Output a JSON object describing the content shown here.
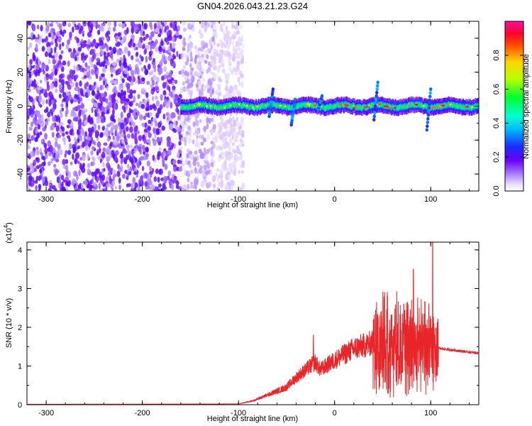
{
  "title": "GN04.2026.043.21.23.G24",
  "chart_data": [
    {
      "type": "heatmap",
      "xlabel": "Height of straight line (km)",
      "ylabel": "Frequency (Hz)",
      "xlim": [
        -320,
        150
      ],
      "ylim": [
        -50,
        50
      ],
      "x_ticks": [
        -300,
        -200,
        -100,
        0,
        100
      ],
      "y_ticks": [
        -40,
        -20,
        0,
        20,
        40
      ],
      "colorbar": {
        "label": "Normalized spectral amplitude",
        "range": [
          0.0,
          1.0
        ],
        "ticks": [
          0.0,
          0.2,
          0.4,
          0.6,
          0.8
        ]
      },
      "features": {
        "noise_region_x": [
          -320,
          -125
        ],
        "signal_band_start_x": -160,
        "signal_band_center_hz": 0,
        "signal_band_width_hz": 6,
        "spikes": [
          {
            "x": -66,
            "y_range": [
              -6,
              10
            ]
          },
          {
            "x": -43,
            "y_range": [
              -11,
              4
            ]
          },
          {
            "x": -15,
            "y_range": [
              -2,
              6
            ]
          },
          {
            "x": 43,
            "y_range": [
              -8,
              14
            ]
          },
          {
            "x": 98,
            "y_range": [
              -14,
              10
            ]
          }
        ]
      }
    },
    {
      "type": "line",
      "xlabel": "Height of straight line (km)",
      "ylabel": "SNR (10 * v/v)",
      "y_scale_label": "(x10",
      "y_scale_exponent": "4",
      "xlim": [
        -320,
        150
      ],
      "ylim": [
        0,
        4.2
      ],
      "x_ticks": [
        -300,
        -200,
        -100,
        0,
        100
      ],
      "y_ticks": [
        0,
        1,
        2,
        3,
        4
      ],
      "series": [
        {
          "name": "SNR",
          "color": "#e8262a",
          "envelope": [
            {
              "x": -320,
              "y": 0.01
            },
            {
              "x": -100,
              "y": 0.02
            },
            {
              "x": -85,
              "y": 0.1
            },
            {
              "x": -70,
              "y": 0.25
            },
            {
              "x": -50,
              "y": 0.45
            },
            {
              "x": -40,
              "y": 0.7
            },
            {
              "x": -30,
              "y": 0.9
            },
            {
              "x": -20,
              "y": 1.1
            },
            {
              "x": -15,
              "y": 0.9
            },
            {
              "x": 0,
              "y": 1.15
            },
            {
              "x": 20,
              "y": 1.45
            },
            {
              "x": 40,
              "y": 1.6
            },
            {
              "x": 50,
              "y": 1.7
            },
            {
              "x": 100,
              "y": 1.5
            },
            {
              "x": 110,
              "y": 1.45
            },
            {
              "x": 150,
              "y": 1.33
            }
          ],
          "peaks": [
            {
              "x": -22,
              "y": 1.8
            },
            {
              "x": 52,
              "y": 2.9
            },
            {
              "x": 55,
              "y": 2.8
            },
            {
              "x": 72,
              "y": 2.6
            },
            {
              "x": 82,
              "y": 3.5
            },
            {
              "x": 102,
              "y": 4.2
            }
          ]
        }
      ]
    }
  ]
}
